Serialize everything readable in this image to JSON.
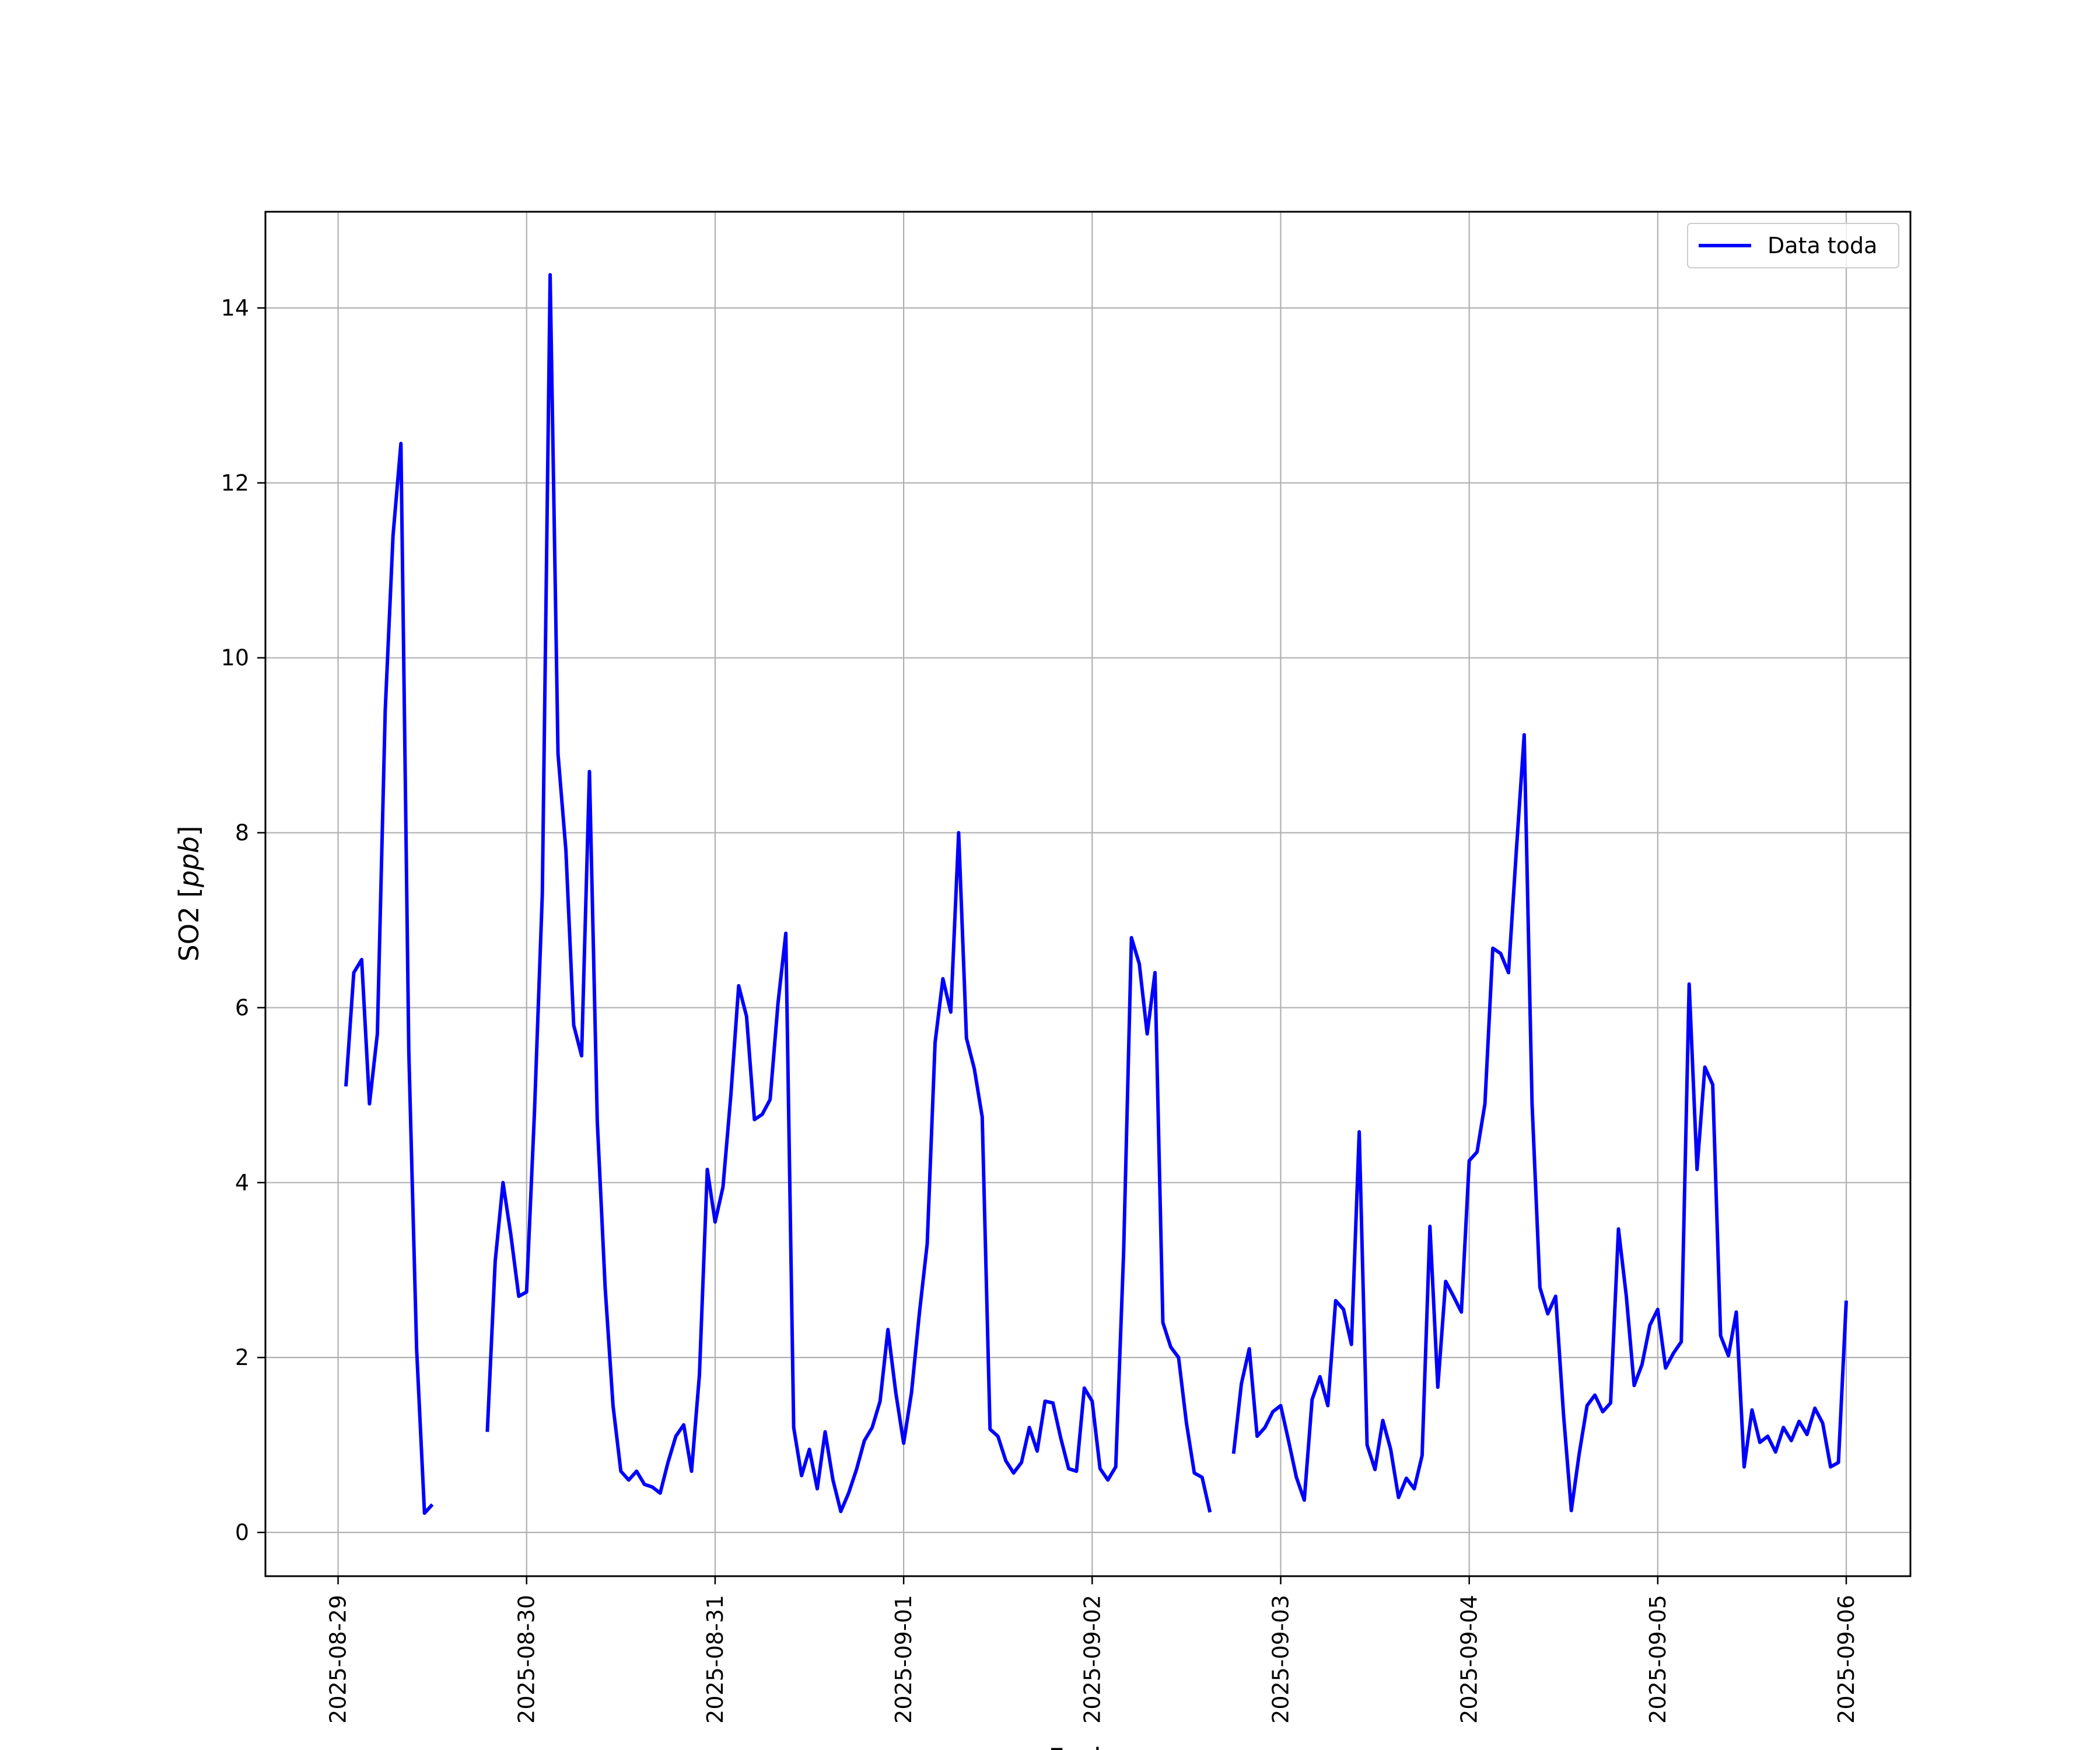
{
  "chart_data": {
    "type": "line",
    "xlabel": "Fecha",
    "ylabel": "SO2 [",
    "ylabel_unit": "ppb",
    "ylabel_close": "]",
    "x_ticks": [
      "2025-08-29",
      "2025-08-30",
      "2025-08-31",
      "2025-09-01",
      "2025-09-02",
      "2025-09-03",
      "2025-09-04",
      "2025-09-05",
      "2025-09-06"
    ],
    "y_ticks": [
      0,
      2,
      4,
      6,
      8,
      10,
      12,
      14
    ],
    "xlim": [
      "2025-08-28T14:45",
      "2025-09-06T08:10"
    ],
    "ylim": [
      -0.5,
      15.1
    ],
    "grid": true,
    "legend": {
      "location": "top-right",
      "entries": [
        "Data toda"
      ]
    },
    "series": [
      {
        "name": "Data toda",
        "color": "#0000ff",
        "segments": [
          [
            [
              "2025-08-29T01:00",
              5.1
            ],
            [
              "2025-08-29T02:00",
              6.4
            ],
            [
              "2025-08-29T03:00",
              6.55
            ],
            [
              "2025-08-29T04:00",
              4.9
            ],
            [
              "2025-08-29T05:00",
              5.7
            ],
            [
              "2025-08-29T06:00",
              9.4
            ],
            [
              "2025-08-29T07:00",
              11.4
            ],
            [
              "2025-08-29T08:00",
              12.45
            ],
            [
              "2025-08-29T09:00",
              5.5
            ],
            [
              "2025-08-29T10:00",
              2.1
            ],
            [
              "2025-08-29T11:00",
              0.22
            ],
            [
              "2025-08-29T12:00",
              0.32
            ]
          ],
          [
            [
              "2025-08-29T19:00",
              1.15
            ],
            [
              "2025-08-29T20:00",
              3.1
            ],
            [
              "2025-08-29T21:00",
              4.0
            ],
            [
              "2025-08-29T22:00",
              3.4
            ],
            [
              "2025-08-29T23:00",
              2.7
            ],
            [
              "2025-08-30T00:00",
              2.75
            ],
            [
              "2025-08-30T01:00",
              4.8
            ],
            [
              "2025-08-30T02:00",
              7.3
            ],
            [
              "2025-08-30T03:00",
              14.38
            ],
            [
              "2025-08-30T04:00",
              8.9
            ],
            [
              "2025-08-30T05:00",
              7.8
            ],
            [
              "2025-08-30T06:00",
              5.8
            ],
            [
              "2025-08-30T07:00",
              5.45
            ],
            [
              "2025-08-30T08:00",
              8.7
            ],
            [
              "2025-08-30T09:00",
              4.7
            ],
            [
              "2025-08-30T10:00",
              2.8
            ],
            [
              "2025-08-30T11:00",
              1.45
            ],
            [
              "2025-08-30T12:00",
              0.7
            ],
            [
              "2025-08-30T13:00",
              0.6
            ],
            [
              "2025-08-30T14:00",
              0.7
            ],
            [
              "2025-08-30T15:00",
              0.55
            ],
            [
              "2025-08-30T16:00",
              0.52
            ],
            [
              "2025-08-30T17:00",
              0.45
            ],
            [
              "2025-08-30T18:00",
              0.8
            ],
            [
              "2025-08-30T19:00",
              1.1
            ],
            [
              "2025-08-30T20:00",
              1.23
            ],
            [
              "2025-08-30T21:00",
              0.7
            ],
            [
              "2025-08-30T22:00",
              1.8
            ],
            [
              "2025-08-30T23:00",
              4.15
            ],
            [
              "2025-08-31T00:00",
              3.55
            ],
            [
              "2025-08-31T01:00",
              3.95
            ],
            [
              "2025-08-31T02:00",
              5.0
            ],
            [
              "2025-08-31T03:00",
              6.25
            ],
            [
              "2025-08-31T04:00",
              5.9
            ],
            [
              "2025-08-31T05:00",
              4.72
            ],
            [
              "2025-08-31T06:00",
              4.78
            ],
            [
              "2025-08-31T07:00",
              4.95
            ],
            [
              "2025-08-31T08:00",
              6.05
            ],
            [
              "2025-08-31T09:00",
              6.85
            ],
            [
              "2025-08-31T10:00",
              1.2
            ],
            [
              "2025-08-31T11:00",
              0.65
            ],
            [
              "2025-08-31T12:00",
              0.95
            ],
            [
              "2025-08-31T13:00",
              0.5
            ],
            [
              "2025-08-31T14:00",
              1.15
            ],
            [
              "2025-08-31T15:00",
              0.6
            ],
            [
              "2025-08-31T16:00",
              0.24
            ],
            [
              "2025-08-31T17:00",
              0.45
            ],
            [
              "2025-08-31T18:00",
              0.72
            ],
            [
              "2025-08-31T19:00",
              1.05
            ],
            [
              "2025-08-31T20:00",
              1.2
            ],
            [
              "2025-08-31T21:00",
              1.5
            ],
            [
              "2025-08-31T22:00",
              2.32
            ],
            [
              "2025-08-31T23:00",
              1.6
            ],
            [
              "2025-09-01T00:00",
              1.02
            ],
            [
              "2025-09-01T01:00",
              1.6
            ],
            [
              "2025-09-01T02:00",
              2.5
            ],
            [
              "2025-09-01T03:00",
              3.3
            ],
            [
              "2025-09-01T04:00",
              5.6
            ],
            [
              "2025-09-01T05:00",
              6.33
            ],
            [
              "2025-09-01T06:00",
              5.95
            ],
            [
              "2025-09-01T07:00",
              8.0
            ],
            [
              "2025-09-01T08:00",
              5.65
            ],
            [
              "2025-09-01T09:00",
              5.3
            ],
            [
              "2025-09-01T10:00",
              4.75
            ],
            [
              "2025-09-01T11:00",
              1.18
            ],
            [
              "2025-09-01T12:00",
              1.1
            ],
            [
              "2025-09-01T13:00",
              0.82
            ],
            [
              "2025-09-01T14:00",
              0.68
            ],
            [
              "2025-09-01T15:00",
              0.8
            ],
            [
              "2025-09-01T16:00",
              1.2
            ],
            [
              "2025-09-01T17:00",
              0.93
            ],
            [
              "2025-09-01T18:00",
              1.5
            ],
            [
              "2025-09-01T19:00",
              1.48
            ],
            [
              "2025-09-01T20:00",
              1.08
            ],
            [
              "2025-09-01T21:00",
              0.73
            ],
            [
              "2025-09-01T22:00",
              0.7
            ],
            [
              "2025-09-01T23:00",
              1.65
            ],
            [
              "2025-09-02T00:00",
              1.5
            ],
            [
              "2025-09-02T01:00",
              0.73
            ],
            [
              "2025-09-02T02:00",
              0.6
            ],
            [
              "2025-09-02T03:00",
              0.75
            ],
            [
              "2025-09-02T04:00",
              3.2
            ],
            [
              "2025-09-02T05:00",
              6.8
            ],
            [
              "2025-09-02T06:00",
              6.5
            ],
            [
              "2025-09-02T07:00",
              5.7
            ],
            [
              "2025-09-02T08:00",
              6.4
            ],
            [
              "2025-09-02T09:00",
              2.4
            ],
            [
              "2025-09-02T10:00",
              2.12
            ],
            [
              "2025-09-02T11:00",
              2.0
            ],
            [
              "2025-09-02T12:00",
              1.25
            ],
            [
              "2025-09-02T13:00",
              0.68
            ],
            [
              "2025-09-02T14:00",
              0.63
            ],
            [
              "2025-09-02T15:00",
              0.23
            ]
          ],
          [
            [
              "2025-09-02T18:00",
              0.9
            ],
            [
              "2025-09-02T19:00",
              1.7
            ],
            [
              "2025-09-02T20:00",
              2.1
            ],
            [
              "2025-09-02T21:00",
              1.1
            ],
            [
              "2025-09-02T22:00",
              1.2
            ],
            [
              "2025-09-02T23:00",
              1.38
            ],
            [
              "2025-09-03T00:00",
              1.45
            ],
            [
              "2025-09-03T01:00",
              1.05
            ],
            [
              "2025-09-03T02:00",
              0.63
            ],
            [
              "2025-09-03T03:00",
              0.37
            ],
            [
              "2025-09-03T04:00",
              1.52
            ],
            [
              "2025-09-03T05:00",
              1.78
            ],
            [
              "2025-09-03T06:00",
              1.45
            ],
            [
              "2025-09-03T07:00",
              2.65
            ],
            [
              "2025-09-03T08:00",
              2.55
            ],
            [
              "2025-09-03T09:00",
              2.15
            ],
            [
              "2025-09-03T10:00",
              4.58
            ],
            [
              "2025-09-03T11:00",
              1.0
            ],
            [
              "2025-09-03T12:00",
              0.72
            ],
            [
              "2025-09-03T13:00",
              1.28
            ],
            [
              "2025-09-03T14:00",
              0.95
            ],
            [
              "2025-09-03T15:00",
              0.4
            ],
            [
              "2025-09-03T16:00",
              0.62
            ],
            [
              "2025-09-03T17:00",
              0.5
            ],
            [
              "2025-09-03T18:00",
              0.88
            ],
            [
              "2025-09-03T19:00",
              3.5
            ],
            [
              "2025-09-03T20:00",
              1.66
            ],
            [
              "2025-09-03T21:00",
              2.87
            ],
            [
              "2025-09-03T22:00",
              2.7
            ],
            [
              "2025-09-03T23:00",
              2.52
            ],
            [
              "2025-09-04T00:00",
              4.25
            ],
            [
              "2025-09-04T01:00",
              4.35
            ],
            [
              "2025-09-04T02:00",
              4.9
            ],
            [
              "2025-09-04T03:00",
              6.68
            ],
            [
              "2025-09-04T04:00",
              6.62
            ],
            [
              "2025-09-04T05:00",
              6.4
            ],
            [
              "2025-09-04T06:00",
              7.8
            ],
            [
              "2025-09-04T07:00",
              9.12
            ],
            [
              "2025-09-04T08:00",
              4.9
            ],
            [
              "2025-09-04T09:00",
              2.8
            ],
            [
              "2025-09-04T10:00",
              2.5
            ],
            [
              "2025-09-04T11:00",
              2.7
            ],
            [
              "2025-09-04T12:00",
              1.35
            ],
            [
              "2025-09-04T13:00",
              0.25
            ],
            [
              "2025-09-04T14:00",
              0.9
            ],
            [
              "2025-09-04T15:00",
              1.45
            ],
            [
              "2025-09-04T16:00",
              1.57
            ],
            [
              "2025-09-04T17:00",
              1.38
            ],
            [
              "2025-09-04T18:00",
              1.48
            ],
            [
              "2025-09-04T19:00",
              3.47
            ],
            [
              "2025-09-04T20:00",
              2.7
            ],
            [
              "2025-09-04T21:00",
              1.68
            ],
            [
              "2025-09-04T22:00",
              1.92
            ],
            [
              "2025-09-04T23:00",
              2.37
            ],
            [
              "2025-09-05T00:00",
              2.55
            ],
            [
              "2025-09-05T01:00",
              1.88
            ],
            [
              "2025-09-05T02:00",
              2.05
            ],
            [
              "2025-09-05T03:00",
              2.18
            ],
            [
              "2025-09-05T04:00",
              6.27
            ],
            [
              "2025-09-05T05:00",
              4.15
            ],
            [
              "2025-09-05T06:00",
              5.32
            ],
            [
              "2025-09-05T07:00",
              5.12
            ],
            [
              "2025-09-05T08:00",
              2.25
            ],
            [
              "2025-09-05T09:00",
              2.02
            ],
            [
              "2025-09-05T10:00",
              2.52
            ],
            [
              "2025-09-05T11:00",
              0.75
            ],
            [
              "2025-09-05T12:00",
              1.4
            ],
            [
              "2025-09-05T13:00",
              1.03
            ],
            [
              "2025-09-05T14:00",
              1.1
            ],
            [
              "2025-09-05T15:00",
              0.92
            ],
            [
              "2025-09-05T16:00",
              1.2
            ],
            [
              "2025-09-05T17:00",
              1.05
            ],
            [
              "2025-09-05T18:00",
              1.27
            ],
            [
              "2025-09-05T19:00",
              1.12
            ],
            [
              "2025-09-05T20:00",
              1.42
            ],
            [
              "2025-09-05T21:00",
              1.25
            ],
            [
              "2025-09-05T22:00",
              0.75
            ],
            [
              "2025-09-05T23:00",
              0.8
            ],
            [
              "2025-09-06T00:00",
              2.65
            ]
          ]
        ]
      }
    ]
  }
}
